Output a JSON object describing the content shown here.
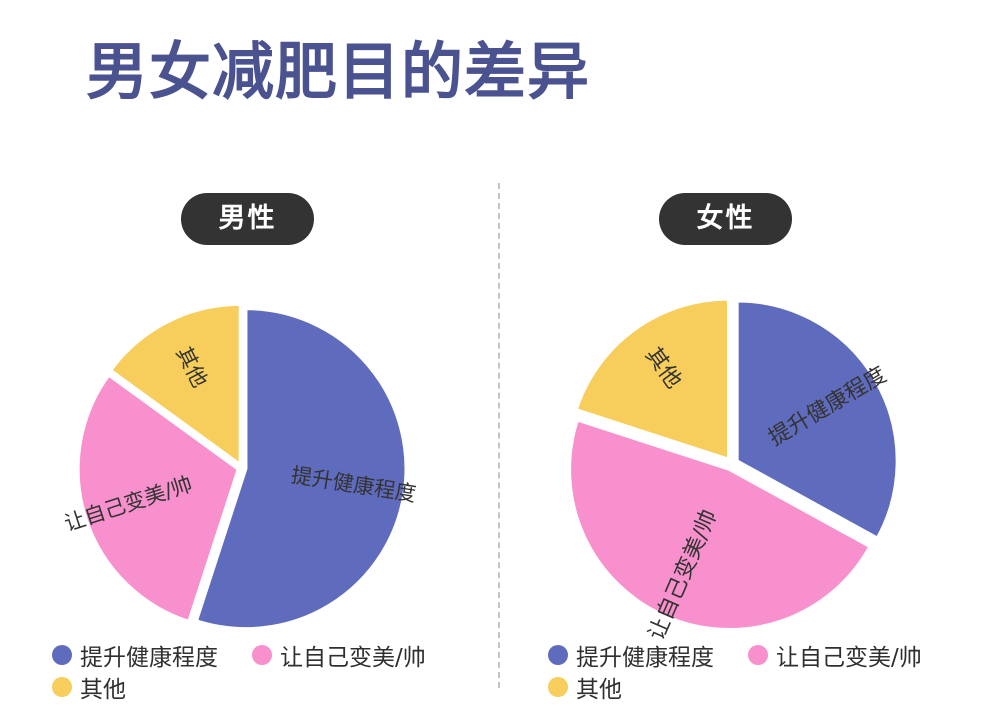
{
  "title": "男女减肥目的差异",
  "colors": {
    "title": "#4a5290",
    "pill": "#333333",
    "divider": "#c4c4c4",
    "health": "#5f6bbd",
    "beauty": "#f790cc",
    "other": "#f7ce5b",
    "slice_text": "#333333"
  },
  "legend": [
    {
      "label": "提升健康程度",
      "color": "#5f6bbd"
    },
    {
      "label": "让自己变美/帅",
      "color": "#f790cc"
    },
    {
      "label": "其他",
      "color": "#f7ce5b"
    }
  ],
  "chart_data": [
    {
      "type": "pie",
      "title": "男性",
      "categories": [
        "提升健康程度",
        "让自己变美/帅",
        "其他"
      ],
      "values": [
        55,
        30,
        15
      ],
      "colors": [
        "#5f6bbd",
        "#f790cc",
        "#f7ce5b"
      ],
      "legend_position": "bottom"
    },
    {
      "type": "pie",
      "title": "女性",
      "categories": [
        "提升健康程度",
        "让自己变美/帅",
        "其他"
      ],
      "values": [
        33,
        47,
        20
      ],
      "colors": [
        "#5f6bbd",
        "#f790cc",
        "#f7ce5b"
      ],
      "legend_position": "bottom"
    }
  ]
}
